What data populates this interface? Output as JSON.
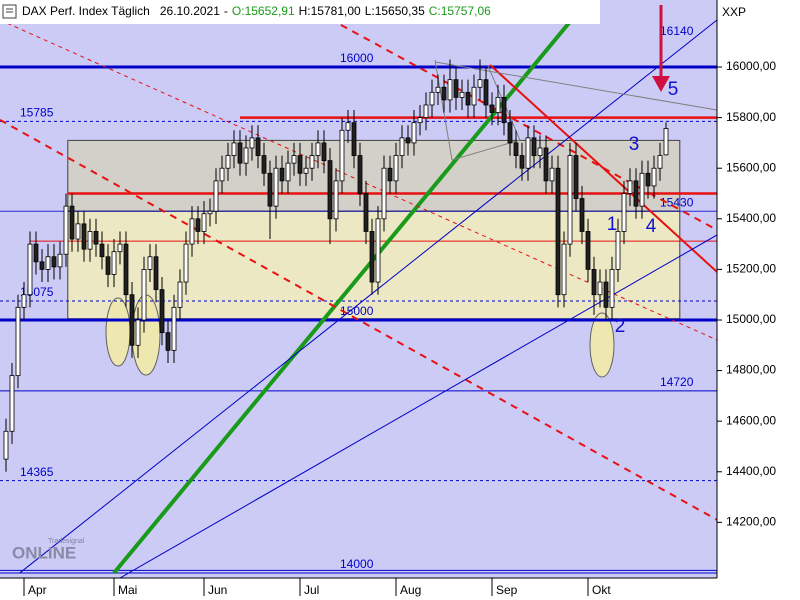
{
  "chart_data": {
    "type": "candlestick",
    "title": "DAX Perf. Index Täglich",
    "date": "26.10.2021",
    "separator": "-",
    "open_label": "O:15652,91",
    "high_label": "H:15781,00",
    "low_label": "L:15650,35",
    "close_label": "C:15757,06",
    "symbol": "XXP",
    "logo_small": "Tradesignal",
    "logo_big": "ONLINE",
    "xlim": [
      -1,
      118.5
    ],
    "ylim": [
      13980,
      16265
    ],
    "xticks": [
      {
        "value": 3,
        "label": "Apr"
      },
      {
        "value": 18,
        "label": "Mai"
      },
      {
        "value": 33,
        "label": "Jun"
      },
      {
        "value": 49,
        "label": "Jul"
      },
      {
        "value": 65,
        "label": "Aug"
      },
      {
        "value": 81,
        "label": "Sep"
      },
      {
        "value": 97,
        "label": "Okt"
      }
    ],
    "yticks": [
      {
        "value": 14200,
        "label": "14200,00"
      },
      {
        "value": 14400,
        "label": "14400,00"
      },
      {
        "value": 14600,
        "label": "14600,00"
      },
      {
        "value": 14800,
        "label": "14800,00"
      },
      {
        "value": 15000,
        "label": "15000,00"
      },
      {
        "value": 15200,
        "label": "15200,00"
      },
      {
        "value": 15400,
        "label": "15400,00"
      },
      {
        "value": 15600,
        "label": "15600,00"
      },
      {
        "value": 15800,
        "label": "15800,00"
      },
      {
        "value": 16000,
        "label": "16000,00"
      }
    ],
    "up_color": "#ffffff",
    "down_color": "#202020",
    "background": "#cbcbf6",
    "box": {
      "x": [
        10.3,
        112.3
      ],
      "top": 15710,
      "mid": 15430,
      "bottom": 15005,
      "top_color": "#d2d0c8",
      "bottom_color": "#ece8c4"
    },
    "levels": [
      {
        "value": 16140,
        "style": "none"
      },
      {
        "value": 16000,
        "style": "thick"
      },
      {
        "value": 15785,
        "style": "dashed"
      },
      {
        "value": 15430,
        "style": "thin"
      },
      {
        "value": 15075,
        "style": "dashed"
      },
      {
        "value": 15000,
        "style": "thick"
      },
      {
        "value": 14720,
        "style": "solid"
      },
      {
        "value": 14365,
        "style": "dashed"
      },
      {
        "value": 14000,
        "style": "solid"
      },
      {
        "value": 14010,
        "style": "solid"
      }
    ],
    "level_color": "#0000c8",
    "red_levels": [
      15800,
      15500,
      15312
    ],
    "red_color": "#e81010",
    "trendlines": [
      {
        "points": [
          18,
          14000,
          97,
          16265
        ],
        "color": "#1a9a1a",
        "width": 4,
        "dash": false
      },
      {
        "points": [
          -1,
          15791,
          118.5,
          14210
        ],
        "color": "#e81010",
        "width": 2,
        "dash": true
      },
      {
        "points": [
          48.2,
          16265,
          118.5,
          15356
        ],
        "color": "#e81010",
        "width": 2,
        "dash": true
      },
      {
        "points": [
          -1,
          16186,
          118.5,
          14921
        ],
        "color": "#e81010",
        "width": 1,
        "dash": true
      },
      {
        "points": [
          80.7,
          16008,
          118.5,
          15190
        ],
        "color": "#e81010",
        "width": 2,
        "dash": false
      },
      {
        "points": [
          2.3,
          14000,
          118.5,
          16186
        ],
        "color": "#0000c8",
        "width": 1,
        "dash": false
      },
      {
        "points": [
          19,
          13980,
          118.5,
          15336
        ],
        "color": "#0000c8",
        "width": 1,
        "dash": false
      },
      {
        "points": [
          71.5,
          16020,
          118.5,
          15830
        ],
        "color": "#808080",
        "width": 1,
        "dash": false
      }
    ],
    "annotations": [
      "1",
      "2",
      "3",
      "4",
      "5"
    ],
    "annotation_color": "#1010d0",
    "ohlc": [
      [
        14450,
        14610,
        14400,
        14560
      ],
      [
        14560,
        14830,
        14510,
        14780
      ],
      [
        14780,
        15100,
        14730,
        15050
      ],
      [
        15050,
        15150,
        15000,
        15100
      ],
      [
        15100,
        15350,
        15050,
        15300
      ],
      [
        15300,
        15350,
        15180,
        15230
      ],
      [
        15230,
        15280,
        15150,
        15200
      ],
      [
        15200,
        15300,
        15150,
        15250
      ],
      [
        15250,
        15300,
        15160,
        15210
      ],
      [
        15210,
        15310,
        15160,
        15260
      ],
      [
        15260,
        15500,
        15210,
        15450
      ],
      [
        15450,
        15500,
        15270,
        15320
      ],
      [
        15320,
        15430,
        15270,
        15380
      ],
      [
        15380,
        15430,
        15230,
        15280
      ],
      [
        15280,
        15400,
        15230,
        15350
      ],
      [
        15350,
        15400,
        15250,
        15300
      ],
      [
        15300,
        15350,
        15200,
        15250
      ],
      [
        15250,
        15300,
        15130,
        15180
      ],
      [
        15180,
        15320,
        15130,
        15270
      ],
      [
        15270,
        15350,
        15220,
        15300
      ],
      [
        15300,
        15350,
        15050,
        15100
      ],
      [
        15100,
        15150,
        14850,
        14900
      ],
      [
        14900,
        15050,
        14850,
        15000
      ],
      [
        15000,
        15250,
        14950,
        15200
      ],
      [
        15200,
        15300,
        15150,
        15250
      ],
      [
        15250,
        15300,
        15070,
        15120
      ],
      [
        15120,
        15170,
        14900,
        14950
      ],
      [
        14950,
        15000,
        14830,
        14880
      ],
      [
        14880,
        15100,
        14830,
        15050
      ],
      [
        15050,
        15200,
        15000,
        15150
      ],
      [
        15150,
        15350,
        15100,
        15300
      ],
      [
        15300,
        15450,
        15250,
        15400
      ],
      [
        15400,
        15450,
        15300,
        15350
      ],
      [
        15350,
        15470,
        15300,
        15420
      ],
      [
        15420,
        15480,
        15370,
        15430
      ],
      [
        15430,
        15600,
        15380,
        15550
      ],
      [
        15550,
        15650,
        15500,
        15600
      ],
      [
        15600,
        15700,
        15550,
        15650
      ],
      [
        15650,
        15750,
        15600,
        15700
      ],
      [
        15700,
        15750,
        15570,
        15620
      ],
      [
        15620,
        15730,
        15570,
        15680
      ],
      [
        15680,
        15770,
        15630,
        15720
      ],
      [
        15720,
        15770,
        15600,
        15650
      ],
      [
        15650,
        15700,
        15530,
        15580
      ],
      [
        15580,
        15630,
        15320,
        15450
      ],
      [
        15450,
        15650,
        15400,
        15600
      ],
      [
        15600,
        15650,
        15500,
        15550
      ],
      [
        15550,
        15670,
        15500,
        15620
      ],
      [
        15620,
        15700,
        15570,
        15650
      ],
      [
        15650,
        15700,
        15530,
        15580
      ],
      [
        15580,
        15650,
        15530,
        15600
      ],
      [
        15600,
        15700,
        15550,
        15650
      ],
      [
        15650,
        15750,
        15600,
        15700
      ],
      [
        15700,
        15750,
        15580,
        15630
      ],
      [
        15630,
        15680,
        15300,
        15400
      ],
      [
        15400,
        15600,
        15350,
        15550
      ],
      [
        15550,
        15800,
        15500,
        15750
      ],
      [
        15750,
        15830,
        15700,
        15780
      ],
      [
        15780,
        15830,
        15600,
        15650
      ],
      [
        15650,
        15700,
        15450,
        15500
      ],
      [
        15500,
        15550,
        15300,
        15350
      ],
      [
        15350,
        15400,
        15100,
        15150
      ],
      [
        15150,
        15450,
        15100,
        15400
      ],
      [
        15400,
        15650,
        15350,
        15600
      ],
      [
        15600,
        15650,
        15500,
        15550
      ],
      [
        15550,
        15700,
        15500,
        15650
      ],
      [
        15650,
        15770,
        15600,
        15720
      ],
      [
        15720,
        15770,
        15650,
        15700
      ],
      [
        15700,
        15830,
        15650,
        15780
      ],
      [
        15780,
        15850,
        15730,
        15800
      ],
      [
        15800,
        15900,
        15750,
        15850
      ],
      [
        15850,
        15950,
        15800,
        15900
      ],
      [
        15900,
        15970,
        15850,
        15920
      ],
      [
        15920,
        15970,
        15820,
        15870
      ],
      [
        15870,
        16030,
        15820,
        15950
      ],
      [
        15950,
        16000,
        15830,
        15880
      ],
      [
        15880,
        15950,
        15830,
        15900
      ],
      [
        15900,
        15950,
        15800,
        15850
      ],
      [
        15850,
        15970,
        15800,
        15920
      ],
      [
        15920,
        16030,
        15870,
        15950
      ],
      [
        15950,
        16000,
        15800,
        15850
      ],
      [
        15850,
        15900,
        15770,
        15820
      ],
      [
        15820,
        15930,
        15770,
        15880
      ],
      [
        15880,
        15930,
        15730,
        15780
      ],
      [
        15780,
        15830,
        15650,
        15700
      ],
      [
        15700,
        15750,
        15600,
        15650
      ],
      [
        15650,
        15700,
        15550,
        15600
      ],
      [
        15600,
        15770,
        15550,
        15720
      ],
      [
        15720,
        15770,
        15600,
        15650
      ],
      [
        15650,
        15730,
        15600,
        15680
      ],
      [
        15680,
        15730,
        15500,
        15550
      ],
      [
        15550,
        15650,
        15500,
        15600
      ],
      [
        15600,
        15650,
        15050,
        15100
      ],
      [
        15100,
        15350,
        15050,
        15300
      ],
      [
        15300,
        15700,
        15250,
        15650
      ],
      [
        15650,
        15700,
        15430,
        15480
      ],
      [
        15480,
        15530,
        15300,
        15350
      ],
      [
        15350,
        15400,
        15150,
        15200
      ],
      [
        15200,
        15250,
        15020,
        15100
      ],
      [
        15100,
        15200,
        15050,
        15150
      ],
      [
        15150,
        15200,
        15000,
        15050
      ],
      [
        15050,
        15250,
        15000,
        15200
      ],
      [
        15200,
        15400,
        15150,
        15350
      ],
      [
        15350,
        15550,
        15300,
        15500
      ],
      [
        15500,
        15600,
        15450,
        15550
      ],
      [
        15550,
        15600,
        15400,
        15450
      ],
      [
        15450,
        15630,
        15400,
        15580
      ],
      [
        15580,
        15630,
        15480,
        15530
      ],
      [
        15530,
        15650,
        15480,
        15600
      ],
      [
        15600,
        15700,
        15550,
        15650
      ],
      [
        15652.91,
        15781,
        15650.35,
        15757.06
      ]
    ]
  }
}
